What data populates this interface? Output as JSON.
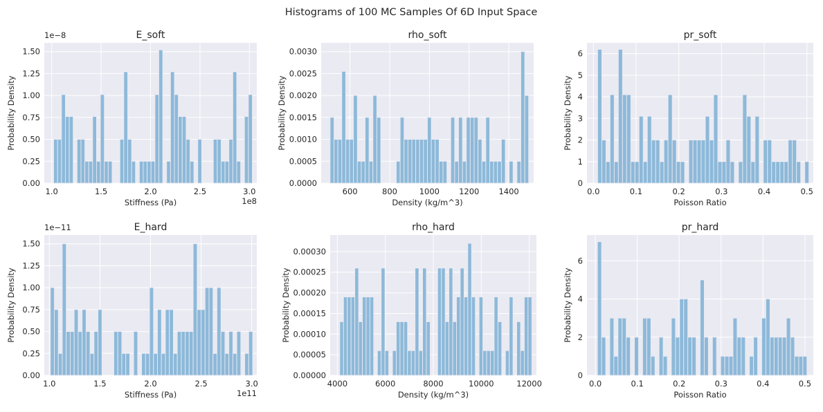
{
  "figure": {
    "suptitle": "Histograms of 100 MC Samples Of 6D Input Space",
    "bar_color": "#8db9d9",
    "axes_bg": "#eaeaf2",
    "grid_color": "#ffffff"
  },
  "chart_data": [
    {
      "type": "bar",
      "title": "E_soft",
      "xlabel": "Stiffness (Pa)",
      "ylabel": "Probability Density",
      "offset_text": "1e8",
      "yoffset_text": "1e−8",
      "xlim": [
        0.925,
        3.075
      ],
      "ylim": [
        0,
        1.6
      ],
      "xticks": [
        1.0,
        1.5,
        2.0,
        2.5,
        3.0
      ],
      "xtick_labels": [
        "1.0",
        "1.5",
        "2.0",
        "2.5",
        "3.0"
      ],
      "yticks": [
        0,
        0.25,
        0.5,
        0.75,
        1.0,
        1.25,
        1.5
      ],
      "ytick_labels": [
        "0.00",
        "0.25",
        "0.50",
        "0.75",
        "1.00",
        "1.25",
        "1.50"
      ],
      "bins": {
        "start": 1.02,
        "width": 0.0394
      },
      "values": [
        0.5,
        0.5,
        1.01,
        0.76,
        0.76,
        0,
        0.5,
        0.5,
        0.25,
        0.25,
        0.76,
        0.25,
        1.01,
        0.25,
        0.25,
        0,
        0,
        0.5,
        1.27,
        0.5,
        0.25,
        0,
        0.25,
        0.25,
        0.25,
        0.25,
        1.01,
        1.52,
        0,
        0.25,
        1.27,
        1.01,
        0.76,
        0.76,
        0.5,
        0.25,
        0,
        0.5,
        0,
        0,
        0,
        0.5,
        0.5,
        0.25,
        0.25,
        0.5,
        1.27,
        0.25,
        0,
        0.76,
        1.01
      ]
    },
    {
      "type": "bar",
      "title": "rho_soft",
      "xlabel": "Density (kg/m^3)",
      "ylabel": "Probability Density",
      "xlim": [
        455,
        1525
      ],
      "ylim": [
        0,
        0.0032
      ],
      "xticks": [
        600,
        800,
        1000,
        1200,
        1400
      ],
      "xtick_labels": [
        "600",
        "800",
        "1000",
        "1200",
        "1400"
      ],
      "yticks": [
        0,
        0.0005,
        0.001,
        0.0015,
        0.002,
        0.0025,
        0.003
      ],
      "ytick_labels": [
        "0.0000",
        "0.0005",
        "0.0010",
        "0.0015",
        "0.0020",
        "0.0025",
        "0.0030"
      ],
      "bins": {
        "start": 500,
        "width": 19.6
      },
      "values": [
        0.0015,
        0.001,
        0.001,
        0.00255,
        0.001,
        0.001,
        0.002,
        0.0005,
        0.0005,
        0.0015,
        0.0005,
        0.002,
        0.0015,
        0,
        0,
        0,
        0,
        0.0005,
        0.0015,
        0.001,
        0.001,
        0.001,
        0.001,
        0.001,
        0.001,
        0.0015,
        0.001,
        0.001,
        0.0005,
        0.0005,
        0,
        0.0015,
        0.0005,
        0.0015,
        0.0005,
        0.0015,
        0.0015,
        0.0015,
        0.001,
        0.0005,
        0.0015,
        0.0005,
        0.0005,
        0.0005,
        0.001,
        0,
        0.0005,
        0,
        0.0005,
        0.003,
        0.002
      ]
    },
    {
      "type": "bar",
      "title": "pr_soft",
      "xlabel": "Poisson Ratio",
      "ylabel": "Probability Density",
      "xlim": [
        -0.015,
        0.515
      ],
      "ylim": [
        0,
        6.5
      ],
      "xticks": [
        0,
        0.1,
        0.2,
        0.3,
        0.4,
        0.5
      ],
      "xtick_labels": [
        "0.0",
        "0.1",
        "0.2",
        "0.3",
        "0.4",
        "0.5"
      ],
      "yticks": [
        0,
        1,
        2,
        3,
        4,
        5,
        6
      ],
      "ytick_labels": [
        "0",
        "1",
        "2",
        "3",
        "4",
        "5",
        "6"
      ],
      "bins": {
        "start": 0.01,
        "width": 0.0097
      },
      "values": [
        6.2,
        2,
        1,
        4.1,
        1,
        6.2,
        4.1,
        4.1,
        1,
        1,
        3.1,
        1,
        3.1,
        2,
        2,
        1,
        2,
        4.1,
        2,
        1,
        1,
        0,
        2,
        2,
        2,
        2,
        3.1,
        2,
        4.1,
        1,
        1,
        2,
        1,
        0,
        1,
        4.1,
        3.1,
        1,
        3.1,
        0,
        2,
        2,
        1,
        1,
        1,
        1,
        2,
        2,
        1,
        0,
        1
      ]
    },
    {
      "type": "bar",
      "title": "E_hard",
      "xlabel": "Stiffness (Pa)",
      "ylabel": "Probability Density",
      "offset_text": "1e11",
      "yoffset_text": "1e−11",
      "xlim": [
        0.95,
        3.05
      ],
      "ylim": [
        0,
        1.6
      ],
      "xticks": [
        1.0,
        1.5,
        2.0,
        2.5,
        3.0
      ],
      "xtick_labels": [
        "1.0",
        "1.5",
        "2.0",
        "2.5",
        "3.0"
      ],
      "yticks": [
        0,
        0.25,
        0.5,
        0.75,
        1.0,
        1.25,
        1.5
      ],
      "ytick_labels": [
        "0.00",
        "0.25",
        "0.50",
        "0.75",
        "1.00",
        "1.25",
        "1.50"
      ],
      "bins": {
        "start": 1.01,
        "width": 0.0392
      },
      "values": [
        1.0,
        0.75,
        0.25,
        1.5,
        0.5,
        0.5,
        0.75,
        0.5,
        0.75,
        0.5,
        0.25,
        0.5,
        0.75,
        0,
        0,
        0,
        0.5,
        0.5,
        0.25,
        0.25,
        0,
        0.5,
        0,
        0.25,
        0.25,
        1.0,
        0.25,
        0.75,
        0.25,
        0.75,
        0.75,
        0.25,
        0.5,
        0.5,
        0.5,
        0.5,
        1.5,
        0.75,
        0.75,
        1.0,
        1.0,
        0.25,
        1.0,
        0.5,
        0.25,
        0.5,
        0.25,
        0.5,
        0,
        0.25,
        0.5
      ]
    },
    {
      "type": "bar",
      "title": "rho_hard",
      "xlabel": "Density (kg/m^3)",
      "ylabel": "Probability Density",
      "xlim": [
        3700,
        12300
      ],
      "ylim": [
        0,
        0.00034
      ],
      "xticks": [
        4000,
        6000,
        8000,
        10000,
        12000
      ],
      "xtick_labels": [
        "4000",
        "6000",
        "8000",
        "10000",
        "12000"
      ],
      "yticks": [
        0,
        5e-05,
        0.0001,
        0.00015,
        0.0002,
        0.00025,
        0.0003
      ],
      "ytick_labels": [
        "0.00000",
        "0.00005",
        "0.00010",
        "0.00015",
        "0.00020",
        "0.00025",
        "0.00030"
      ],
      "bins": {
        "start": 4100,
        "width": 157
      },
      "values": [
        0.00013,
        0.00019,
        0.00019,
        0.00019,
        0.00026,
        0.00013,
        0.00019,
        0.00019,
        0.00019,
        0,
        6e-05,
        0.00026,
        6e-05,
        0,
        6e-05,
        0.00013,
        0.00013,
        0.00013,
        6e-05,
        6e-05,
        0.00026,
        6e-05,
        0.00026,
        0.00013,
        0,
        0,
        0.00026,
        0.00026,
        0.00013,
        0.00026,
        0.00013,
        0.00019,
        0.00026,
        0.00019,
        0.00032,
        0.00019,
        0,
        0.00019,
        6e-05,
        6e-05,
        6e-05,
        0.00019,
        0.00013,
        0,
        6e-05,
        0.00019,
        0,
        0.00013,
        6e-05,
        0.00019,
        0.00019
      ]
    },
    {
      "type": "bar",
      "title": "pr_hard",
      "xlabel": "Poisson Ratio",
      "ylabel": "Probability Density",
      "xlim": [
        -0.02,
        0.52
      ],
      "ylim": [
        0,
        7.35
      ],
      "xticks": [
        0,
        0.1,
        0.2,
        0.3,
        0.4,
        0.5
      ],
      "xtick_labels": [
        "0.0",
        "0.1",
        "0.2",
        "0.3",
        "0.4",
        "0.5"
      ],
      "yticks": [
        0,
        2,
        4,
        6
      ],
      "ytick_labels": [
        "0",
        "2",
        "4",
        "6"
      ],
      "bins": {
        "start": 0.005,
        "width": 0.0098
      },
      "values": [
        7,
        2,
        0,
        3,
        1,
        3,
        3,
        2,
        0,
        2,
        0,
        3,
        3,
        1,
        0,
        2,
        1,
        0,
        3,
        2,
        4,
        4,
        2,
        2,
        0,
        5,
        2,
        0,
        2,
        0,
        1,
        1,
        1,
        3,
        2,
        2,
        0,
        1,
        2,
        0,
        3,
        4,
        2,
        2,
        2,
        2,
        3,
        2,
        1,
        1,
        1
      ]
    }
  ]
}
